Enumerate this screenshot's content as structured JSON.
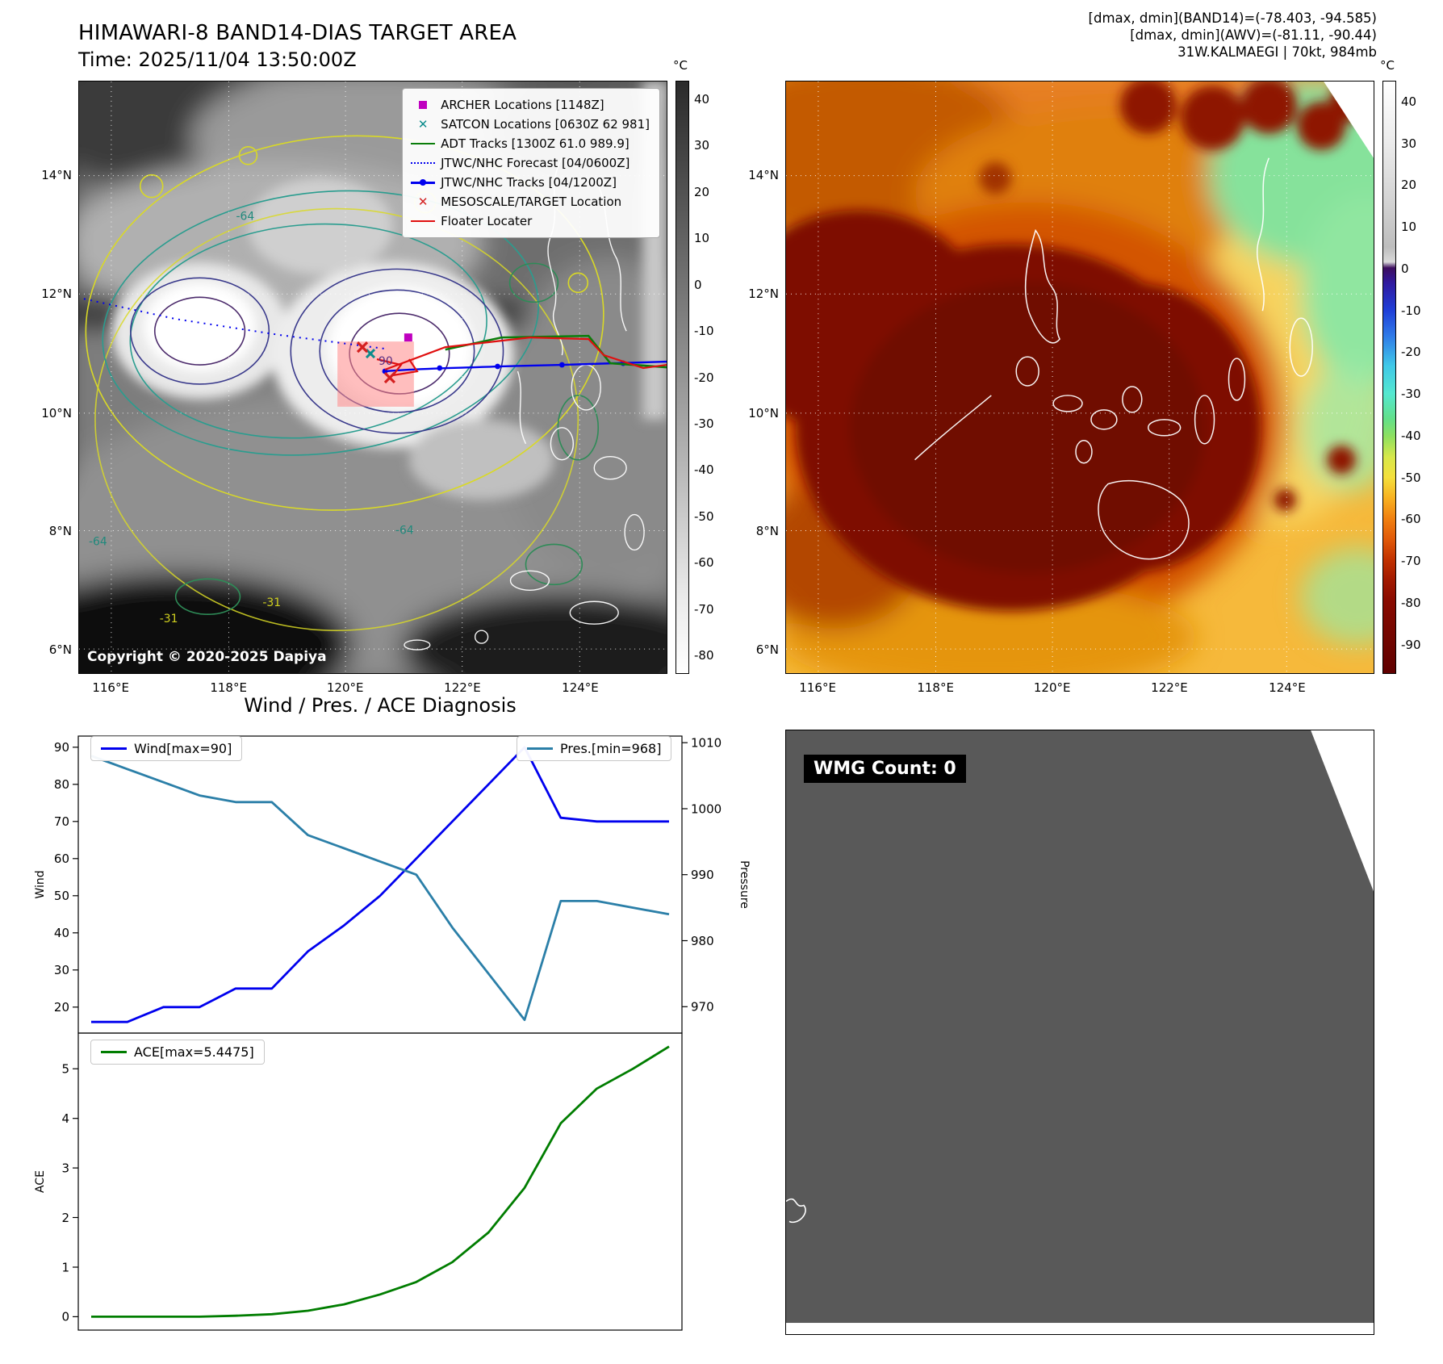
{
  "band14_panel": {
    "title": "HIMAWARI-8 BAND14-DIAS TARGET AREA",
    "time_line": "Time: 2025/11/04 13:50:00Z",
    "copyright": "Copyright © 2020-2025 Dapiya",
    "colorbar_unit": "°C",
    "colorbar_ticks": [
      40,
      30,
      20,
      10,
      0,
      -10,
      -20,
      -30,
      -40,
      -50,
      -60,
      -70,
      -80
    ],
    "x_ticks": [
      "116°E",
      "118°E",
      "120°E",
      "122°E",
      "124°E"
    ],
    "y_ticks": [
      "14°N",
      "12°N",
      "10°N",
      "8°N",
      "6°N"
    ],
    "contour_labels": [
      "-64",
      "-64",
      "-64",
      "-31",
      "-31",
      "90"
    ],
    "legend": [
      {
        "label": "ARCHER Locations [1148Z]",
        "marker": "magenta-square"
      },
      {
        "label": "SATCON Locations [0630Z 62 981]",
        "marker": "teal-x"
      },
      {
        "label": "ADT Tracks [1300Z 61.0 989.9]",
        "marker": "green-line"
      },
      {
        "label": "JTWC/NHC Forecast [04/0600Z]",
        "marker": "blue-dotted-line"
      },
      {
        "label": "JTWC/NHC Tracks [04/1200Z]",
        "marker": "blue-line-dot"
      },
      {
        "label": "MESOSCALE/TARGET Location",
        "marker": "red-x"
      },
      {
        "label": "Floater Locater",
        "marker": "red-line"
      }
    ]
  },
  "awv_panel": {
    "header_lines": [
      "[dmax, dmin](BAND14)=(-78.403, -94.585)",
      "[dmax, dmin](AWV)=(-81.11, -90.44)",
      "31W.KALMAEGI | 70kt, 984mb"
    ],
    "colorbar_unit": "°C",
    "colorbar_ticks": [
      40,
      30,
      20,
      10,
      0,
      -10,
      -20,
      -30,
      -40,
      -50,
      -60,
      -70,
      -80,
      -90
    ],
    "x_ticks": [
      "116°E",
      "118°E",
      "120°E",
      "122°E",
      "124°E"
    ],
    "y_ticks": [
      "14°N",
      "12°N",
      "10°N",
      "8°N",
      "6°N"
    ]
  },
  "diagnosis": {
    "title": "Wind / Pres. / ACE Diagnosis",
    "wind_legend": "Wind[max=90]",
    "pres_legend": "Pres.[min=968]",
    "ace_legend": "ACE[max=5.4475]",
    "wind_ylabel": "Wind",
    "pres_ylabel": "Pressure",
    "ace_ylabel": "ACE"
  },
  "wmg_panel": {
    "label": "WMG Count: 0"
  },
  "chart_data": [
    {
      "type": "line",
      "title": "Wind / Pres. / ACE Diagnosis",
      "x": "fix sequence (no x tick labels shown)",
      "series": [
        {
          "name": "Wind[max=90]",
          "axis": "left",
          "color": "#0000ee",
          "values": [
            16,
            16,
            20,
            20,
            25,
            25,
            35,
            42,
            50,
            60,
            70,
            80,
            90,
            71,
            70,
            70,
            70
          ]
        },
        {
          "name": "Pres.[min=968]",
          "axis": "right",
          "color": "#2b7fa8",
          "values": [
            1008,
            1006,
            1004,
            1002,
            1001,
            1001,
            996,
            994,
            992,
            990,
            982,
            975,
            968,
            986,
            986,
            985,
            984
          ]
        }
      ],
      "ylabel": "Wind",
      "y2label": "Pressure",
      "yticks": [
        20,
        30,
        40,
        50,
        60,
        70,
        80,
        90
      ],
      "y2ticks": [
        970,
        980,
        990,
        1000,
        1010
      ],
      "ylim": [
        13,
        93
      ],
      "y2lim": [
        966,
        1011
      ],
      "legend_position": "top-left / top-right inside axes",
      "grid": false
    },
    {
      "type": "line",
      "series": [
        {
          "name": "ACE[max=5.4475]",
          "axis": "left",
          "color": "#007d00",
          "values": [
            0,
            0,
            0,
            0,
            0.02,
            0.05,
            0.12,
            0.25,
            0.45,
            0.7,
            1.1,
            1.7,
            2.6,
            3.9,
            4.6,
            5.0,
            5.4475
          ]
        }
      ],
      "ylabel": "ACE",
      "yticks": [
        0,
        1,
        2,
        3,
        4,
        5
      ],
      "ylim": [
        -0.27,
        5.72
      ],
      "legend_position": "top-left inside axes",
      "grid": false
    }
  ]
}
